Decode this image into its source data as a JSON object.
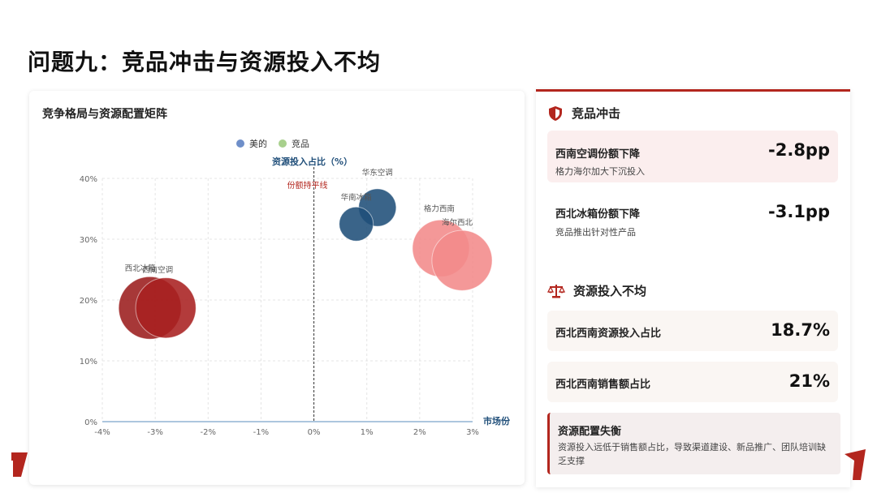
{
  "page": {
    "title": "问题九：竞品冲击与资源投入不均"
  },
  "chart_card": {
    "title": "竞争格局与资源配置矩阵"
  },
  "chart_data": {
    "type": "scatter",
    "title": "竞争格局与资源配置矩阵",
    "xlabel": "市场份",
    "ylabel": "资源投入占比（%）",
    "xlim": [
      -4,
      3
    ],
    "ylim": [
      0,
      40
    ],
    "x_ticks": [
      "-4%",
      "-3%",
      "-2%",
      "-1%",
      "0%",
      "1%",
      "2%",
      "3%"
    ],
    "y_ticks": [
      "0%",
      "10%",
      "20%",
      "30%",
      "40%"
    ],
    "reference_line": {
      "x": 0,
      "label": "份额持平线"
    },
    "legend": [
      "美的",
      "竞品"
    ],
    "legend_placement": "top-center",
    "grid": true,
    "series": [
      {
        "name": "美的",
        "color": "#1f4e79",
        "points": [
          {
            "label": "华东空调",
            "x": 1.2,
            "y": 35.2,
            "size": 3.3
          },
          {
            "label": "华南冰箱",
            "x": 0.8,
            "y": 32.5,
            "size": 3.0
          }
        ]
      },
      {
        "name": "竞品",
        "color": "#a8d08d",
        "points": [
          {
            "label": "格力西南",
            "x": 2.4,
            "y": 28.5,
            "size": 5.0
          },
          {
            "label": "海尔西北",
            "x": 2.8,
            "y": 26.5,
            "size": 5.3
          },
          {
            "label": "西北冰箱",
            "x": -3.1,
            "y": 18.7,
            "size": 5.5
          },
          {
            "label": "西南空调",
            "x": -2.8,
            "y": 18.7,
            "size": 5.3
          }
        ]
      }
    ]
  },
  "panel": {
    "section1_title": "竞品冲击",
    "metric1": {
      "label": "西南空调份额下降",
      "sub": "格力海尔加大下沉投入",
      "value": "-2.8pp"
    },
    "metric2": {
      "label": "西北冰箱份额下降",
      "sub": "竞品推出针对性产品",
      "value": "-3.1pp"
    },
    "section2_title": "资源投入不均",
    "metric3": {
      "label": "西北西南资源投入占比",
      "value": "18.7%"
    },
    "metric4": {
      "label": "西北西南销售额占比",
      "value": "21%"
    },
    "note": {
      "title": "资源配置失衡",
      "body": "资源投入远低于销售额占比，导致渠道建设、新品推广、团队培训缺乏支撑"
    }
  },
  "colors": {
    "accent": "#b3261e",
    "midea": "#1f4e79",
    "competitor_legend": "#a8d08d"
  }
}
